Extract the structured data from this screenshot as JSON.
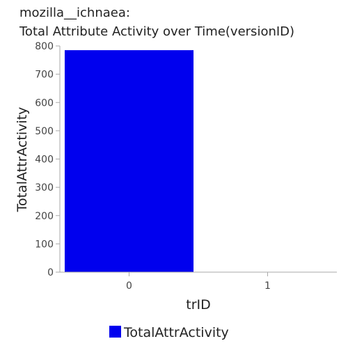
{
  "chart_data": {
    "type": "bar",
    "title_line1": "mozilla__ichnaea:",
    "title_line2": "Total Attribute Activity over Time(versionID)",
    "xlabel": "trID",
    "ylabel": "TotalAttrActivity",
    "categories": [
      "0",
      "1"
    ],
    "series": [
      {
        "name": "TotalAttrActivity",
        "values": [
          785,
          0
        ],
        "color": "#0000ee"
      }
    ],
    "ylim": [
      0,
      800
    ],
    "yticks": [
      0,
      100,
      200,
      300,
      400,
      500,
      600,
      700,
      800
    ],
    "grid": false,
    "legend": "bottom-center"
  }
}
